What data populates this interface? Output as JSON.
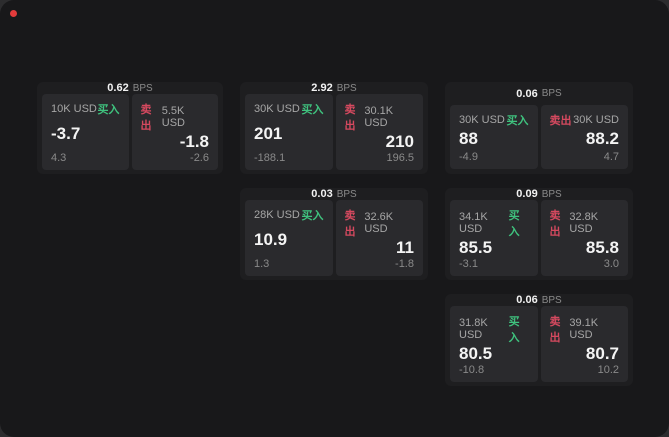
{
  "app": {
    "backdrop_color": "#2c2c2e",
    "window_color": "#18181a",
    "indicator_color": "#e23b3b"
  },
  "labels": {
    "bps": "BPS",
    "buy": "买入",
    "sell": "卖出"
  },
  "colors": {
    "buy_accent": "#3fc27e",
    "sell_accent": "#d5495f",
    "price_text": "#f4f4f4",
    "muted_text": "#8a8a8a",
    "card_bg": "#1e1e20",
    "panel_bg": "#2a2a2d"
  },
  "cards": [
    {
      "bps": "0.62",
      "buy": {
        "size": "10K USD",
        "price": "-3.7",
        "delta": "4.3"
      },
      "sell": {
        "size": "5.5K USD",
        "price": "-1.8",
        "delta": "-2.6"
      }
    },
    {
      "bps": "2.92",
      "buy": {
        "size": "30K USD",
        "price": "201",
        "delta": "-188.1"
      },
      "sell": {
        "size": "30.1K USD",
        "price": "210",
        "delta": "196.5"
      }
    },
    {
      "bps": "0.06",
      "buy": {
        "size": "30K USD",
        "price": "88",
        "delta": "-4.9"
      },
      "sell": {
        "size": "30K USD",
        "price": "88.2",
        "delta": "4.7"
      }
    },
    {
      "bps": "0.03",
      "buy": {
        "size": "28K USD",
        "price": "10.9",
        "delta": "1.3"
      },
      "sell": {
        "size": "32.6K USD",
        "price": "11",
        "delta": "-1.8"
      }
    },
    {
      "bps": "0.09",
      "buy": {
        "size": "34.1K USD",
        "price": "85.5",
        "delta": "-3.1"
      },
      "sell": {
        "size": "32.8K USD",
        "price": "85.8",
        "delta": "3.0"
      }
    },
    {
      "bps": "0.06",
      "buy": {
        "size": "31.8K USD",
        "price": "80.5",
        "delta": "-10.8"
      },
      "sell": {
        "size": "39.1K USD",
        "price": "80.7",
        "delta": "10.2"
      }
    }
  ]
}
